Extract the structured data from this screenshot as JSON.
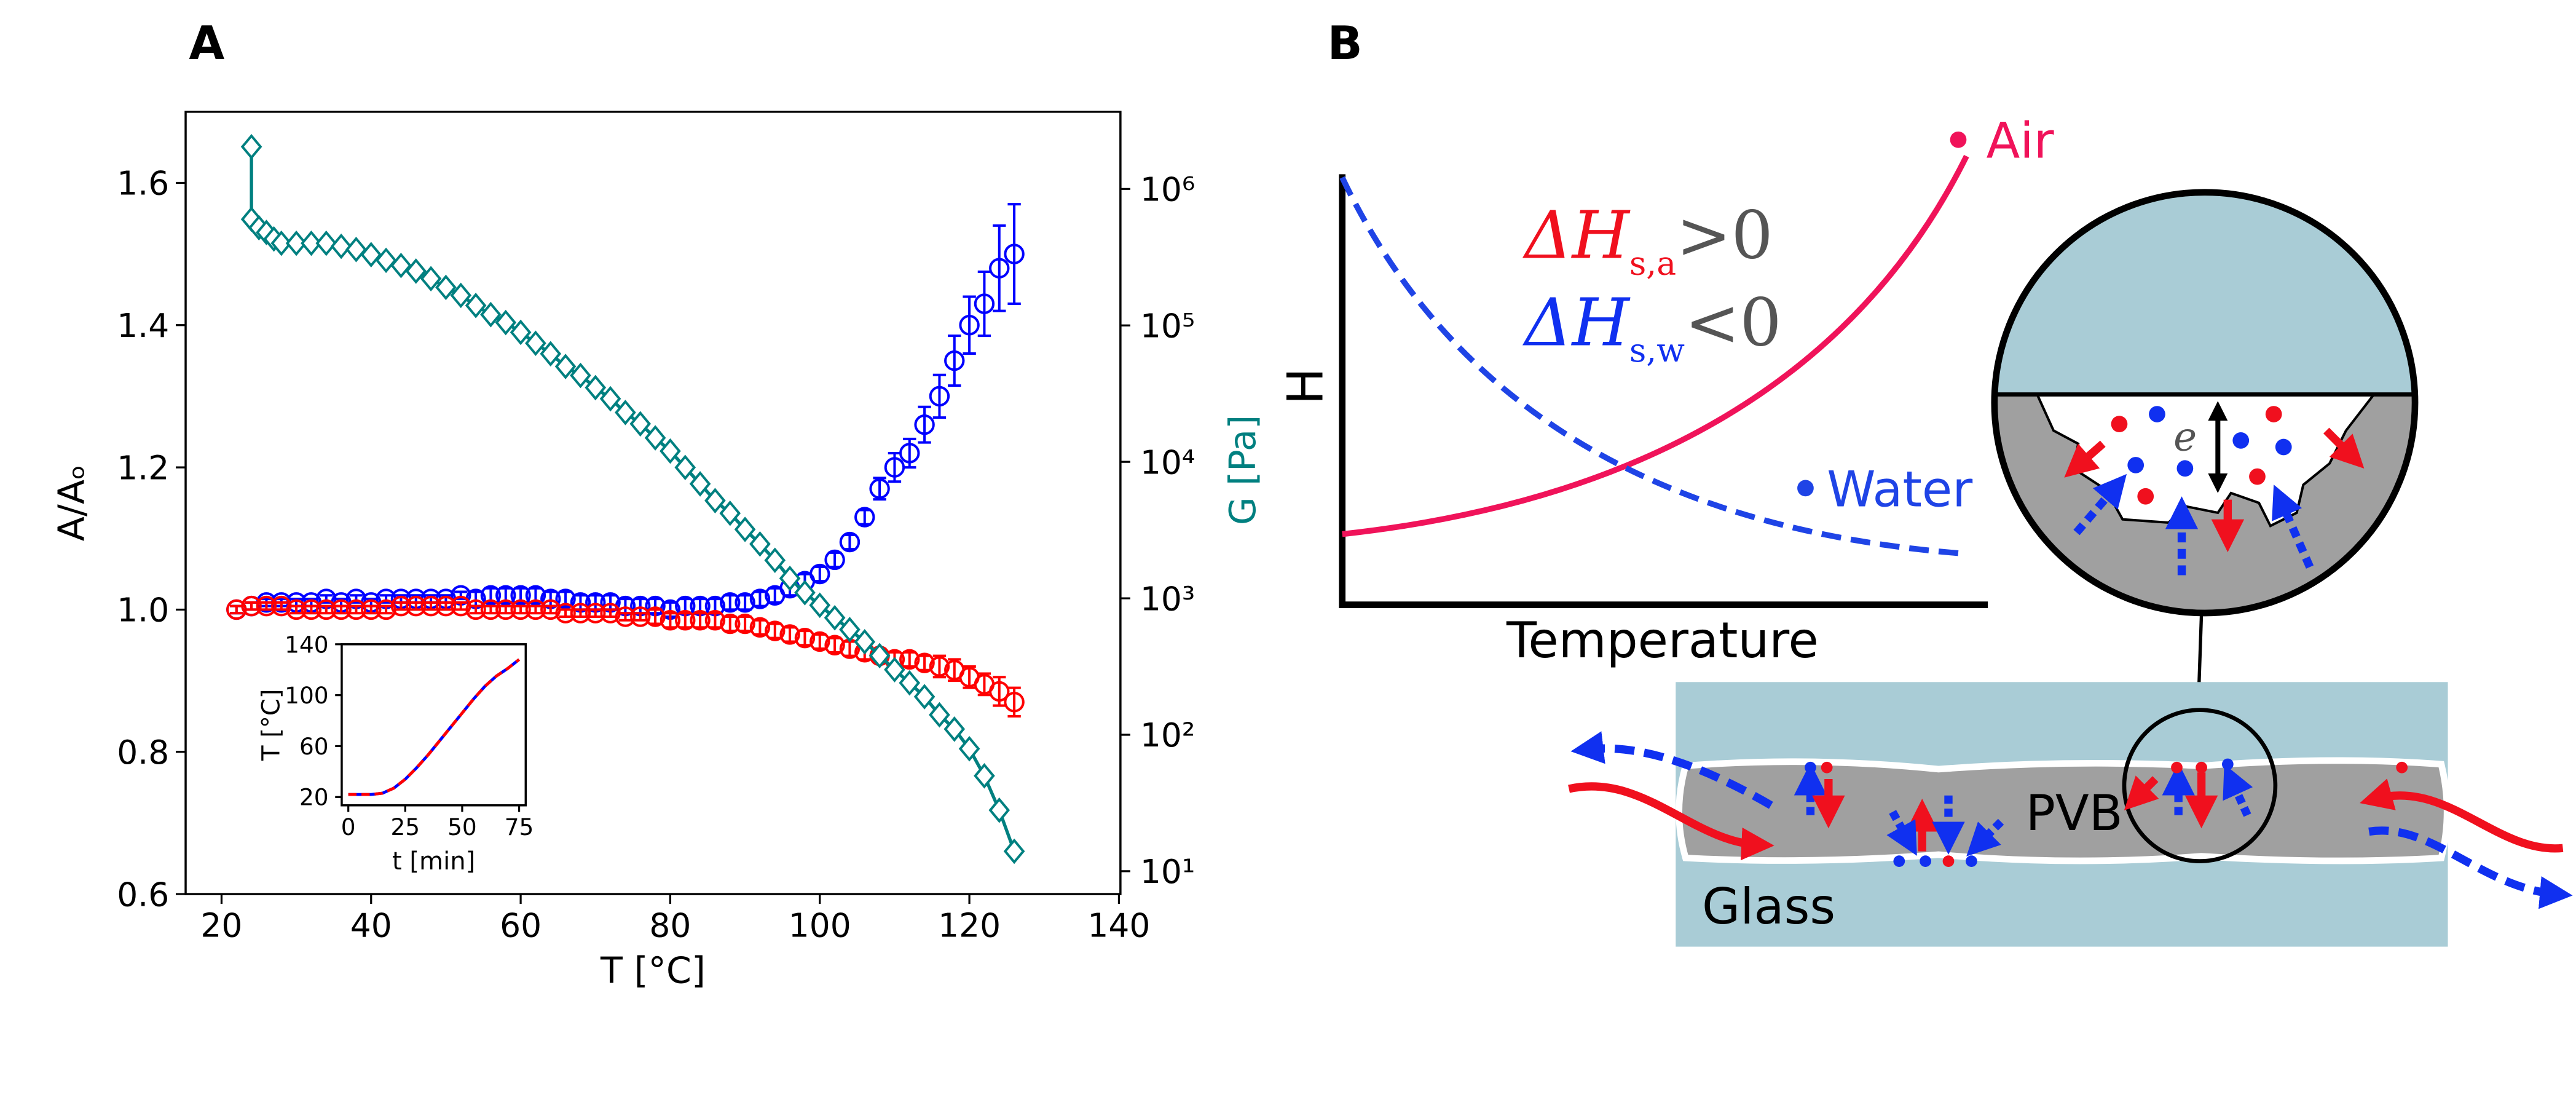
{
  "chart_data": [
    {
      "type": "scatter",
      "panel": "A",
      "xlabel": "T [°C]",
      "ylabel": "A/Aₒ",
      "y2label": "G [Pa]",
      "xlim": [
        15.2,
        140.2
      ],
      "xticks": [
        20,
        40,
        60,
        80,
        100,
        120,
        140
      ],
      "ylim": [
        0.6,
        1.7
      ],
      "yticks": [
        0.6,
        0.8,
        {
          "value": 1,
          "label": "1.0"
        },
        1.2,
        1.4,
        1.6
      ],
      "y2scale": "log",
      "y2lim": [
        6.8,
        3680000
      ],
      "y2color": "#008080",
      "y2ticks": [
        {
          "value": 10,
          "label": "10¹"
        },
        {
          "value": 100,
          "label": "10²"
        },
        {
          "value": 1000,
          "label": "10³"
        },
        {
          "value": 10000,
          "label": "10⁴"
        },
        {
          "value": 100000,
          "label": "10⁵"
        },
        {
          "value": 1000000,
          "label": "10⁶"
        }
      ],
      "series": [
        {
          "color": "#0000ff",
          "marker": "circle",
          "x": [
            22,
            24,
            26,
            28,
            30,
            32,
            34,
            36,
            38,
            40,
            42,
            44,
            46,
            48,
            50,
            52,
            54,
            56,
            58,
            60,
            62,
            64,
            66,
            68,
            70,
            72,
            74,
            76,
            78,
            80,
            82,
            84,
            86,
            88,
            90,
            92,
            94,
            96,
            98,
            100,
            102,
            104,
            106,
            108,
            110,
            112,
            114,
            116,
            118,
            120,
            122,
            124,
            126
          ],
          "values": [
            1.0,
            1.005,
            1.01,
            1.01,
            1.01,
            1.01,
            1.015,
            1.01,
            1.015,
            1.01,
            1.015,
            1.015,
            1.015,
            1.015,
            1.015,
            1.02,
            1.015,
            1.02,
            1.02,
            1.02,
            1.02,
            1.015,
            1.015,
            1.01,
            1.01,
            1.01,
            1.005,
            1.005,
            1.005,
            1.0,
            1.005,
            1.005,
            1.005,
            1.01,
            1.01,
            1.015,
            1.02,
            1.03,
            1.04,
            1.05,
            1.07,
            1.095,
            1.13,
            1.17,
            1.2,
            1.22,
            1.26,
            1.3,
            1.35,
            1.4,
            1.43,
            1.48,
            1.5
          ],
          "errors": [
            0.005,
            0.005,
            0.005,
            0.005,
            0.005,
            0.005,
            0.005,
            0.005,
            0.005,
            0.005,
            0.005,
            0.005,
            0.005,
            0.005,
            0.005,
            0.005,
            0.01,
            0.01,
            0.01,
            0.01,
            0.01,
            0.01,
            0.01,
            0.01,
            0.01,
            0.01,
            0.01,
            0.01,
            0.01,
            0.01,
            0.01,
            0.01,
            0.01,
            0.01,
            0.01,
            0.01,
            0.01,
            0.01,
            0.01,
            0.01,
            0.01,
            0.01,
            0.01,
            0.015,
            0.02,
            0.02,
            0.025,
            0.03,
            0.035,
            0.04,
            0.045,
            0.06,
            0.07
          ]
        },
        {
          "color": "#ff0000",
          "marker": "circle",
          "x": [
            22,
            24,
            26,
            28,
            30,
            32,
            34,
            36,
            38,
            40,
            42,
            44,
            46,
            48,
            50,
            52,
            54,
            56,
            58,
            60,
            62,
            64,
            66,
            68,
            70,
            72,
            74,
            76,
            78,
            80,
            82,
            84,
            86,
            88,
            90,
            92,
            94,
            96,
            98,
            100,
            102,
            104,
            106,
            108,
            110,
            112,
            114,
            116,
            118,
            120,
            122,
            124,
            126
          ],
          "values": [
            1.0,
            1.005,
            1.005,
            1.005,
            1.0,
            1.0,
            1.0,
            1.0,
            1.0,
            1.0,
            1.0,
            1.005,
            1.005,
            1.005,
            1.005,
            1.005,
            1.0,
            1.0,
            1.0,
            1.0,
            1.0,
            1.0,
            0.995,
            0.995,
            0.995,
            0.995,
            0.99,
            0.99,
            0.99,
            0.985,
            0.985,
            0.985,
            0.985,
            0.98,
            0.98,
            0.975,
            0.97,
            0.965,
            0.96,
            0.955,
            0.95,
            0.945,
            0.94,
            0.935,
            0.93,
            0.93,
            0.925,
            0.92,
            0.915,
            0.905,
            0.895,
            0.885,
            0.87
          ],
          "errors": [
            0.005,
            0.005,
            0.005,
            0.005,
            0.005,
            0.005,
            0.005,
            0.005,
            0.005,
            0.005,
            0.005,
            0.005,
            0.005,
            0.005,
            0.005,
            0.005,
            0.005,
            0.005,
            0.005,
            0.005,
            0.005,
            0.005,
            0.005,
            0.005,
            0.005,
            0.005,
            0.005,
            0.005,
            0.01,
            0.01,
            0.01,
            0.01,
            0.01,
            0.01,
            0.01,
            0.01,
            0.01,
            0.01,
            0.01,
            0.01,
            0.01,
            0.01,
            0.01,
            0.01,
            0.01,
            0.01,
            0.01,
            0.015,
            0.015,
            0.015,
            0.015,
            0.02,
            0.02
          ]
        },
        {
          "color": "#008080",
          "marker": "diamond",
          "axis": "y2",
          "connected": true,
          "x": [
            24,
            24,
            25,
            26,
            27,
            28,
            30,
            32,
            34,
            36,
            38,
            40,
            42,
            44,
            46,
            48,
            50,
            52,
            54,
            56,
            58,
            60,
            62,
            64,
            66,
            68,
            70,
            72,
            74,
            76,
            78,
            80,
            82,
            84,
            86,
            88,
            90,
            92,
            94,
            96,
            98,
            100,
            102,
            104,
            106,
            108,
            110,
            112,
            114,
            116,
            118,
            120,
            122,
            124,
            126
          ],
          "values": [
            2040000,
            600000,
            520000,
            480000,
            430000,
            400000,
            400000,
            400000,
            400000,
            380000,
            360000,
            330000,
            300000,
            275000,
            250000,
            220000,
            190000,
            166000,
            140000,
            120000,
            105000,
            89000,
            74000,
            62000,
            50000,
            43000,
            35000,
            29000,
            23000,
            19000,
            15000,
            12000,
            9100,
            6900,
            5200,
            4200,
            3200,
            2500,
            1900,
            1400,
            1100,
            890,
            720,
            590,
            480,
            380,
            300,
            240,
            190,
            140,
            110,
            79,
            50,
            28,
            14
          ]
        }
      ]
    },
    {
      "type": "line",
      "xlabel": "t [min]",
      "ylabel": "T [°C]",
      "xlim": [
        -2.9,
        77.9
      ],
      "xticks": [
        0,
        25,
        50,
        75
      ],
      "ylim": [
        13.5,
        140
      ],
      "yticks": [
        20,
        60,
        100,
        140
      ],
      "series": [
        {
          "color": "#0000ff",
          "x": [
            0,
            5,
            10,
            15,
            20,
            25,
            30,
            35,
            40,
            45,
            50,
            55,
            60,
            65,
            70,
            75
          ],
          "values": [
            22,
            22,
            22,
            23,
            27,
            34,
            43,
            53,
            64,
            75,
            86,
            97,
            107,
            115,
            121,
            128
          ]
        },
        {
          "color": "#ff0000",
          "dash": true,
          "x": [
            0,
            5,
            10,
            15,
            20,
            25,
            30,
            35,
            40,
            45,
            50,
            55,
            60,
            65,
            70,
            75
          ],
          "values": [
            22,
            22,
            22,
            23,
            27,
            34,
            43,
            53,
            64,
            75,
            86,
            97,
            107,
            115,
            121,
            128
          ]
        }
      ]
    }
  ],
  "diagram": {
    "panel": "B",
    "y_label": "H",
    "x_label": "Temperature",
    "air": "Air",
    "water": "Water",
    "delta_a": {
      "symbol": "ΔH",
      "subscript": "s,a",
      "relation": ">0"
    },
    "delta_w": {
      "symbol": "ΔH",
      "subscript": "s,w",
      "relation": "<0"
    },
    "gap": "e",
    "layer": "PVB",
    "glass": "Glass"
  }
}
